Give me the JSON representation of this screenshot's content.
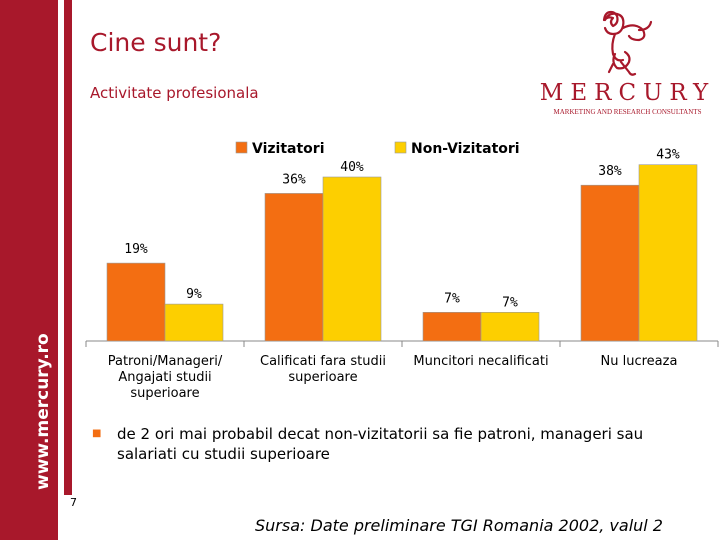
{
  "sidebar": {
    "site_url": "www.mercury.ro"
  },
  "header": {
    "title": "Cine sunt?",
    "subtitle": "Activitate profesionala"
  },
  "logo": {
    "wordmark": "MERCURY",
    "tagline": "MARKETING AND RESEARCH CONSULTANTS"
  },
  "colors": {
    "brand": "#a8182b",
    "vizitatori": "#f36e12",
    "non_vizitatori": "#fdcf00"
  },
  "chart_data": {
    "type": "bar",
    "categories": [
      [
        "Patroni/Manageri/",
        "Angajati studii",
        "superioare"
      ],
      [
        "Calificati fara studii",
        "superioare"
      ],
      [
        "Muncitori necalificati"
      ],
      [
        "Nu lucreaza"
      ]
    ],
    "series": [
      {
        "name": "Vizitatori",
        "values": [
          19,
          36,
          7,
          38
        ],
        "labels": [
          "19%",
          "36%",
          "7%",
          "38%"
        ],
        "color": "#f36e12"
      },
      {
        "name": "Non-Vizitatori",
        "values": [
          9,
          40,
          7,
          43
        ],
        "labels": [
          "9%",
          "40%",
          "7%",
          "43%"
        ],
        "color": "#fdcf00"
      }
    ],
    "legend": "top",
    "ylim": [
      0,
      50
    ],
    "grid": false
  },
  "bullet": {
    "text": "de 2 ori mai probabil decat non-vizitatorii sa fie patroni, manageri sau salariati cu studii superioare"
  },
  "page_number": "7",
  "source": "Sursa: Date preliminare TGI Romania 2002, valul 2"
}
